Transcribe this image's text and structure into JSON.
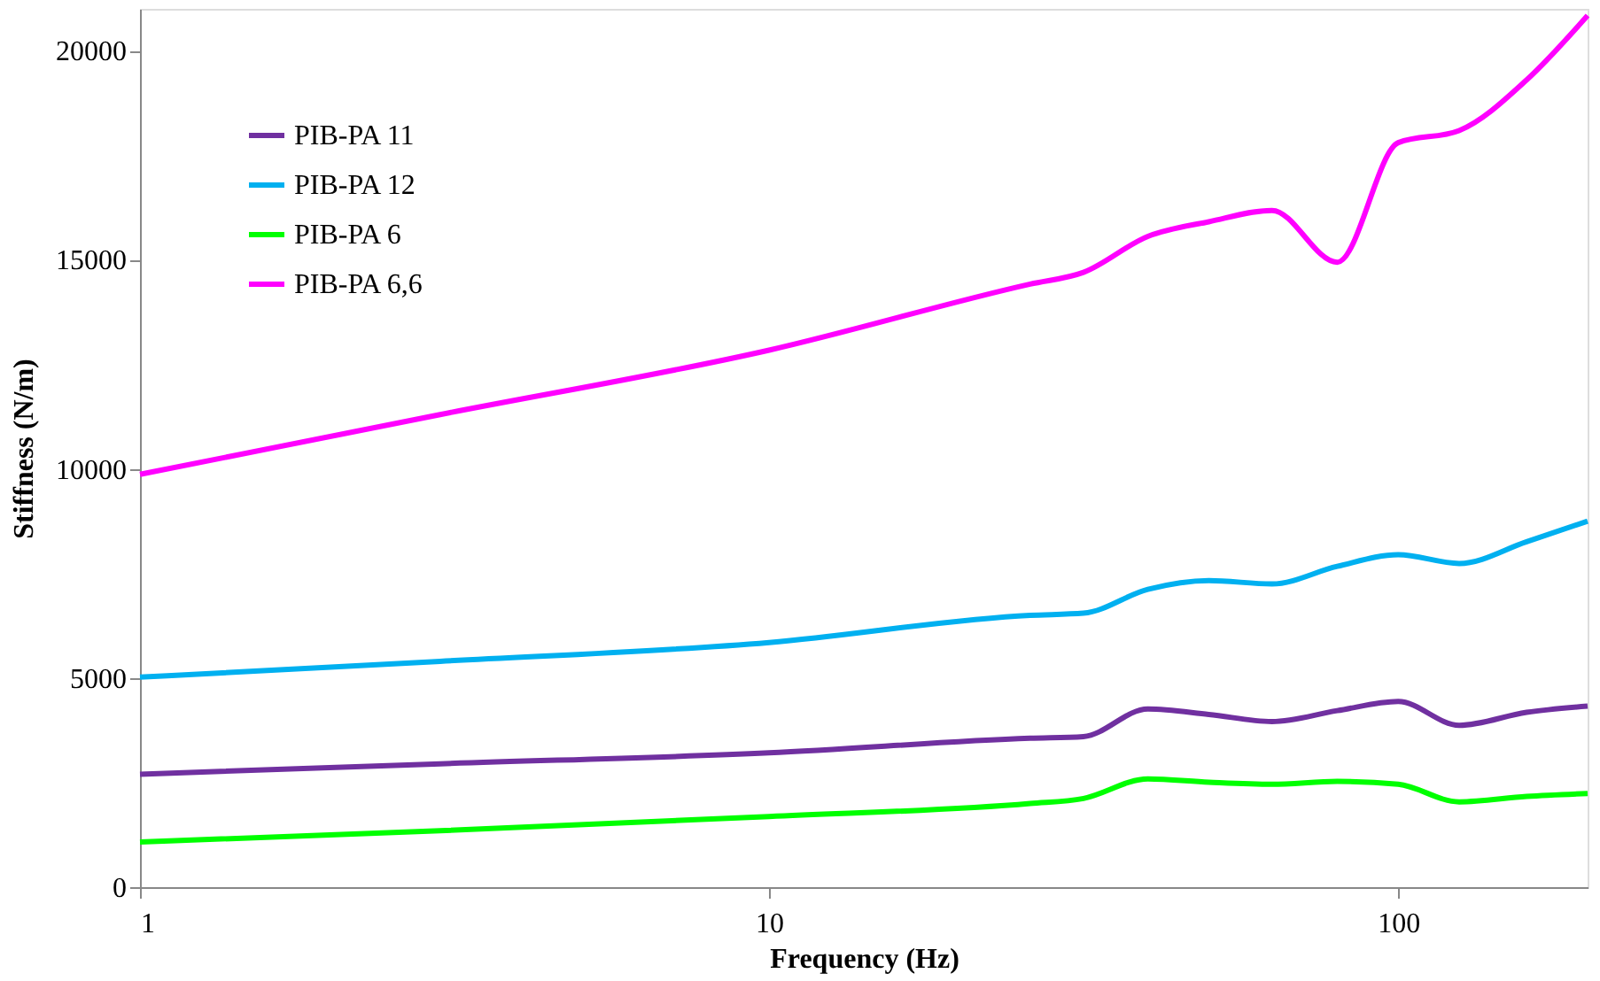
{
  "chart_data": {
    "type": "line",
    "xlabel": "Frequency (Hz)",
    "ylabel": "Stiffness (N/m)",
    "log": "x",
    "x": [
      1,
      3,
      10,
      26,
      31.6,
      40,
      50,
      63,
      80,
      100,
      125,
      160,
      200
    ],
    "series": [
      {
        "name": "PIB-PA 11",
        "color": "#7030a0",
        "values": [
          2700,
          2950,
          3210,
          3560,
          3600,
          4260,
          4130,
          3960,
          4220,
          4440,
          3870,
          4180,
          4330
        ]
      },
      {
        "name": "PIB-PA 12",
        "color": "#00b0f0",
        "values": [
          5020,
          5400,
          5850,
          6500,
          6550,
          7120,
          7330,
          7250,
          7670,
          7950,
          7740,
          8260,
          8750
        ]
      },
      {
        "name": "PIB-PA 6",
        "color": "#00ff00",
        "values": [
          1080,
          1350,
          1690,
          2000,
          2120,
          2590,
          2510,
          2460,
          2530,
          2460,
          2040,
          2170,
          2240
        ]
      },
      {
        "name": "PIB-PA 6,6",
        "color": "#ff00ff",
        "values": [
          9870,
          11300,
          12840,
          14420,
          14700,
          15560,
          15910,
          16180,
          14940,
          17800,
          18090,
          19300,
          20840
        ]
      }
    ],
    "xlim": [
      1,
      200
    ],
    "xticks": [
      1,
      10,
      100
    ],
    "ylim": [
      0,
      21000
    ],
    "yticks": [
      0,
      5000,
      10000,
      15000,
      20000
    ],
    "grid": false,
    "legend": "top left",
    "marker": "none",
    "line_style": "solid"
  }
}
